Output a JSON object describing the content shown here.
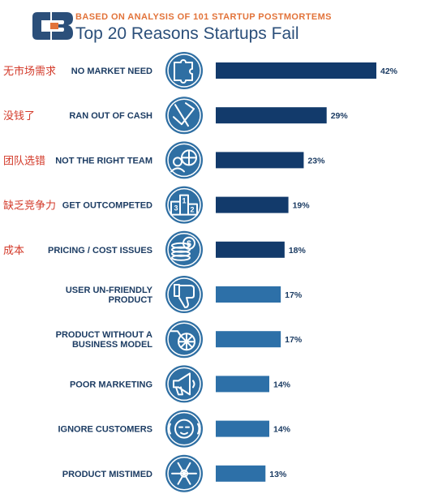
{
  "header": {
    "subtitle": "BASED ON ANALYSIS OF 101 STARTUP POSTMORTEMS",
    "title": "Top 20 Reasons Startups Fail"
  },
  "colors": {
    "brand": "#2b4f7a",
    "accent": "#e2733a",
    "dark_bar": "#123a6b",
    "light_bar": "#2d70a8",
    "icon_fill": "#2f6fa3",
    "annotation": "#d33a2a"
  },
  "chart_data": {
    "type": "bar",
    "orientation": "horizontal",
    "title": "Top 20 Reasons Startups Fail",
    "subtitle": "BASED ON ANALYSIS OF 101 STARTUP POSTMORTEMS",
    "unit": "%",
    "xlim": [
      0,
      42
    ],
    "categories": [
      "NO MARKET NEED",
      "RAN OUT OF CASH",
      "NOT THE RIGHT TEAM",
      "GET OUTCOMPETED",
      "PRICING / COST ISSUES",
      "USER UN-FRIENDLY PRODUCT",
      "PRODUCT WITHOUT A BUSINESS MODEL",
      "POOR MARKETING",
      "IGNORE CUSTOMERS",
      "PRODUCT MISTIMED"
    ],
    "label_lines": [
      [
        "NO MARKET NEED"
      ],
      [
        "RAN OUT OF CASH"
      ],
      [
        "NOT THE RIGHT TEAM"
      ],
      [
        "GET OUTCOMPETED"
      ],
      [
        "PRICING / COST ISSUES"
      ],
      [
        "USER UN-FRIENDLY",
        "PRODUCT"
      ],
      [
        "PRODUCT WITHOUT A",
        "BUSINESS MODEL"
      ],
      [
        "POOR MARKETING"
      ],
      [
        "IGNORE CUSTOMERS"
      ],
      [
        "PRODUCT MISTIMED"
      ]
    ],
    "values": [
      42,
      29,
      23,
      19,
      18,
      17,
      17,
      14,
      14,
      13
    ],
    "value_labels": [
      "42%",
      "29%",
      "23%",
      "19%",
      "18%",
      "17%",
      "17%",
      "14%",
      "14%",
      "13%"
    ],
    "icons": [
      "puzzle-icon",
      "empty-wallet-icon",
      "team-globe-icon",
      "podium-icon",
      "coins-icon",
      "thumbs-down-icon",
      "wheel-cart-icon",
      "megaphone-icon",
      "monkey-covering-ears-icon",
      "snowflake-icon"
    ],
    "annotations": [
      "无市场需求",
      "没钱了",
      "团队选错",
      "缺乏竞争力",
      "成本",
      "",
      "",
      "",
      "",
      ""
    ],
    "dark_bar_count": 5,
    "grid": false,
    "legend": "none"
  }
}
